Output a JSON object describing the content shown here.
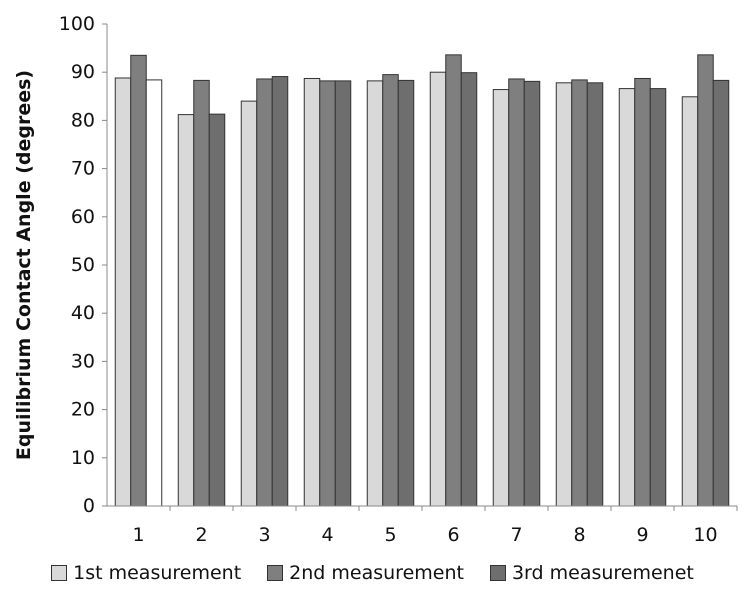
{
  "chart_data": {
    "type": "bar",
    "title": "",
    "xlabel": "",
    "ylabel": "Equilibrium Contact Angle (degrees)",
    "ylim": [
      0,
      100
    ],
    "yticks": [
      "0",
      "10",
      "20",
      "30",
      "40",
      "50",
      "60",
      "70",
      "80",
      "90",
      "100"
    ],
    "categories": [
      "1",
      "2",
      "3",
      "4",
      "5",
      "6",
      "7",
      "8",
      "9",
      "10"
    ],
    "grid": false,
    "legend_position": "bottom",
    "series": [
      {
        "name": "1st measurement",
        "color": "#d9d9d9",
        "values": [
          88.8,
          81.2,
          84.0,
          88.7,
          88.2,
          90.0,
          86.4,
          87.8,
          86.6,
          84.9
        ]
      },
      {
        "name": "2nd measurement",
        "color": "#7f7f7f",
        "values": [
          93.5,
          88.3,
          88.6,
          88.2,
          89.5,
          93.6,
          88.6,
          88.4,
          88.7,
          93.6
        ]
      },
      {
        "name": "3rd measuremenet",
        "color": "#6e6e6e",
        "values": [
          88.4,
          81.3,
          89.1,
          88.2,
          88.3,
          89.9,
          88.1,
          87.8,
          86.6,
          88.3
        ]
      }
    ],
    "bar_exceptions": [
      {
        "series": 2,
        "category": 0,
        "color": "#ffffff"
      }
    ]
  }
}
